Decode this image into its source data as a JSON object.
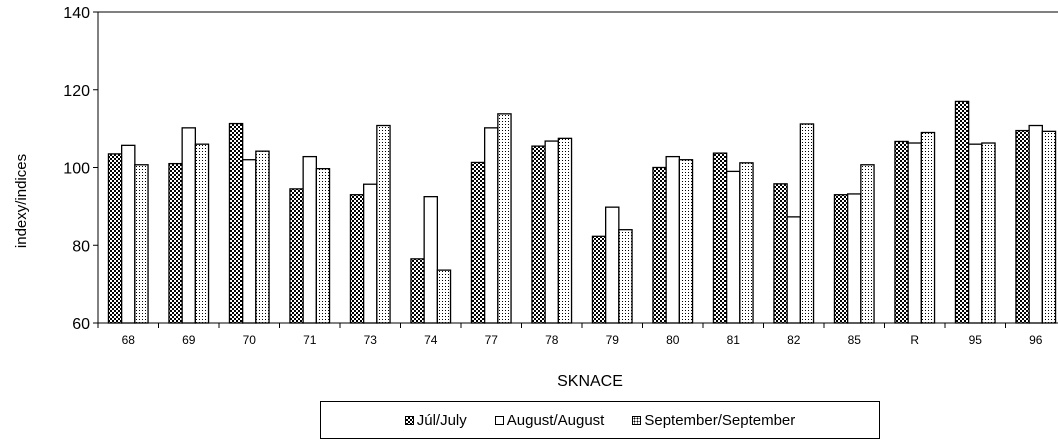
{
  "chart_data": {
    "type": "bar",
    "title": "",
    "xlabel": "SKNACE",
    "ylabel": "indexy/indices",
    "ylim": [
      60,
      140
    ],
    "yticks": [
      60,
      80,
      100,
      120,
      140
    ],
    "grid": false,
    "legend_position": "bottom",
    "categories": [
      "68",
      "69",
      "70",
      "71",
      "73",
      "74",
      "77",
      "78",
      "79",
      "80",
      "81",
      "82",
      "85",
      "R",
      "95",
      "96"
    ],
    "series": [
      {
        "name": "Júl/July",
        "pattern": "checkerboard",
        "values": [
          103.5,
          101.0,
          111.3,
          94.5,
          93.0,
          76.5,
          101.3,
          105.5,
          82.3,
          100.0,
          103.7,
          95.8,
          93.0,
          106.7,
          117.0,
          109.5
        ]
      },
      {
        "name": "August/August",
        "pattern": "solid-white",
        "values": [
          105.7,
          110.2,
          102.0,
          102.8,
          95.7,
          92.5,
          110.2,
          106.8,
          89.8,
          102.8,
          99.0,
          87.3,
          93.2,
          106.3,
          106.0,
          110.8
        ]
      },
      {
        "name": "September/September",
        "pattern": "dotted",
        "values": [
          100.7,
          106.0,
          104.2,
          99.7,
          110.8,
          73.6,
          113.8,
          107.5,
          84.0,
          102.0,
          101.2,
          111.2,
          100.7,
          109.0,
          106.3,
          109.3
        ]
      }
    ],
    "colors": {
      "stroke": "#000000",
      "fill": "#ffffff"
    }
  }
}
